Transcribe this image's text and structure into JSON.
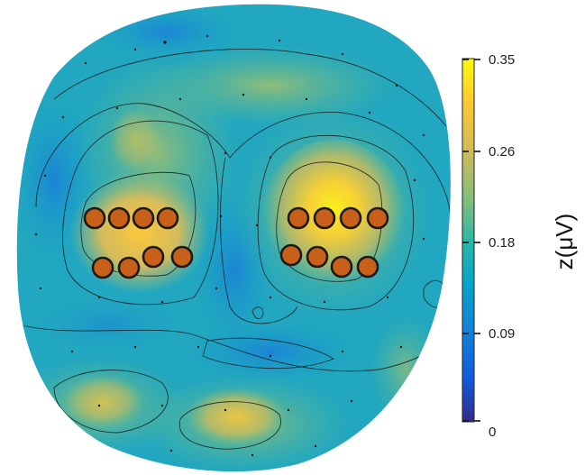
{
  "figure": {
    "colorbar": {
      "ticks": [
        "0.35",
        "0.26",
        "0.18",
        "0.09",
        "0"
      ],
      "unit_label": "z(μV)",
      "range": [
        0,
        0.35
      ],
      "colors": [
        "#352a87",
        "#0f5cdd",
        "#1481d6",
        "#06a4ca",
        "#2eb7a4",
        "#87bf77",
        "#d1bb59",
        "#fec832",
        "#f9fb0e"
      ]
    },
    "electrode_clusters": {
      "left": {
        "count": 8,
        "color": "#c8601a"
      },
      "right": {
        "count": 8,
        "color": "#c8601a"
      }
    }
  }
}
